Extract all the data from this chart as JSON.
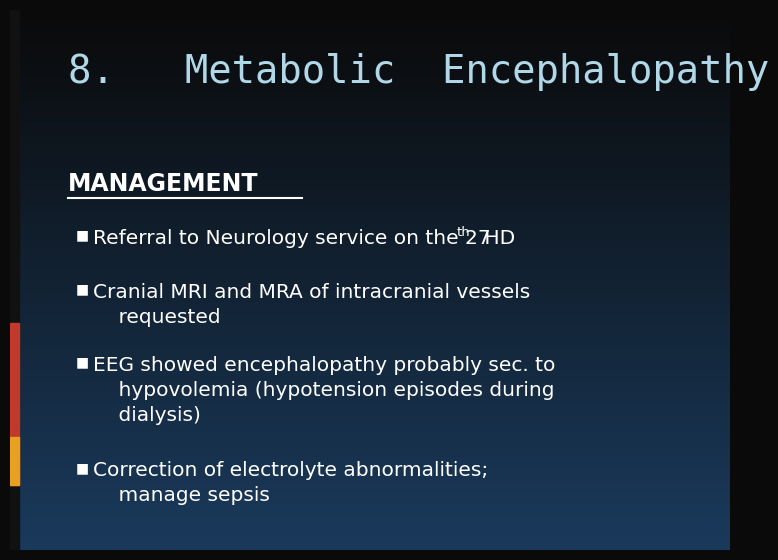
{
  "title": "8.   Metabolic  Encephalopathy",
  "background_top": "#0a0a0a",
  "background_bottom": "#1a3a5c",
  "title_color": "#b0d8e8",
  "title_fontsize": 28,
  "title_family": "monospace",
  "section_label": "MANAGEMENT",
  "section_color": "#ffffff",
  "section_fontsize": 17,
  "bullet1": "Referral to Neurology service on the 27",
  "bullet1_super": "th",
  "bullet1_end": " HD",
  "bullet2_line1": "Cranial MRI and MRA of intracranial vessels",
  "bullet2_line2": "    requested",
  "bullet3_line1": "EEG showed encephalopathy probably sec. to",
  "bullet3_line2": "    hypovolemia (hypotension episodes during",
  "bullet3_line3": "    dialysis)",
  "bullet4_line1": "Correction of electrolyte abnormalities;",
  "bullet4_line2": "    manage sepsis",
  "bullet_color": "#ffffff",
  "bullet_fontsize": 14.5,
  "bullet_font": "sans-serif"
}
